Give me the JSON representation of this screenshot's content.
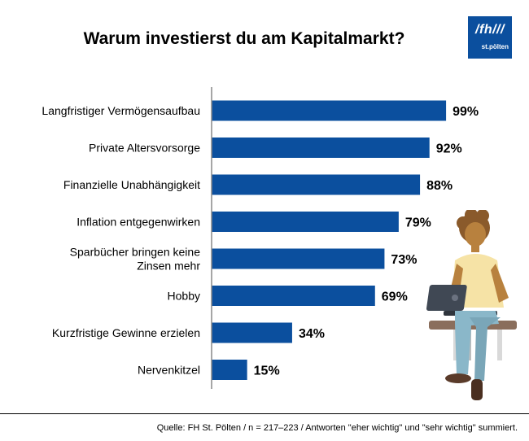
{
  "logo": {
    "main": "/fh///",
    "sub": "st.pölten"
  },
  "chart_data": {
    "type": "bar",
    "orientation": "horizontal",
    "title": "Warum investierst du am Kapitalmarkt?",
    "categories": [
      "Langfristiger Vermögensaufbau",
      "Private Altersvorsorge",
      "Finanzielle Unabhängigkeit",
      "Inflation entgegenwirken",
      "Sparbücher bringen keine Zinsen mehr",
      "Hobby",
      "Kurzfristige Gewinne erzielen",
      "Nervenkitzel"
    ],
    "category_lines": [
      [
        "Langfristiger Vermögensaufbau"
      ],
      [
        "Private Altersvorsorge"
      ],
      [
        "Finanzielle Unabhängigkeit"
      ],
      [
        "Inflation entgegenwirken"
      ],
      [
        "Sparbücher bringen keine",
        "Zinsen mehr"
      ],
      [
        "Hobby"
      ],
      [
        "Kurzfristige Gewinne erzielen"
      ],
      [
        "Nervenkitzel"
      ]
    ],
    "values": [
      99,
      92,
      88,
      79,
      73,
      69,
      34,
      15
    ],
    "value_labels": [
      "99%",
      "92%",
      "88%",
      "79%",
      "73%",
      "69%",
      "34%",
      "15%"
    ],
    "unit": "%",
    "xlim": [
      0,
      100
    ],
    "grid": false,
    "bar_color": "#0b4f9e"
  },
  "source": "Quelle: FH St. Pölten / n = 217–223 / Antworten \"eher wichtig\" und \"sehr wichtig\" summiert."
}
